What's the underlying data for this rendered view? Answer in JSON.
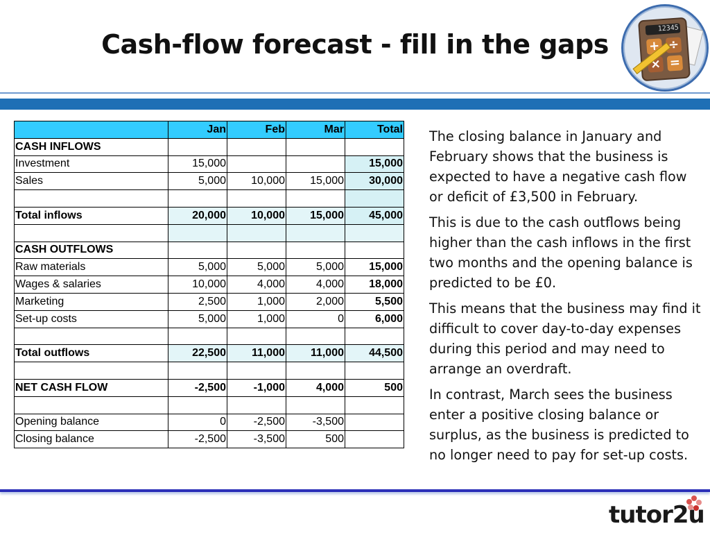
{
  "title": "Cash-flow forecast - fill in the gaps",
  "badge": {
    "screen": "12345",
    "keys": [
      "+",
      "÷",
      "×",
      "="
    ],
    "icon": "calculator-icon"
  },
  "table": {
    "headers": [
      "",
      "Jan",
      "Feb",
      "Mar",
      "Total"
    ],
    "rows": [
      [
        "CASH INFLOWS",
        "",
        "",
        "",
        ""
      ],
      [
        "Investment",
        "15,000",
        "",
        "",
        "15,000"
      ],
      [
        "Sales",
        "5,000",
        "10,000",
        "15,000",
        "30,000"
      ],
      [
        "",
        "",
        "",
        "",
        ""
      ],
      [
        "Total inflows",
        "20,000",
        "10,000",
        "15,000",
        "45,000"
      ],
      [
        "",
        "",
        "",
        "",
        ""
      ],
      [
        "CASH OUTFLOWS",
        "",
        "",
        "",
        ""
      ],
      [
        "Raw materials",
        "5,000",
        "5,000",
        "5,000",
        "15,000"
      ],
      [
        "Wages & salaries",
        "10,000",
        "4,000",
        "4,000",
        "18,000"
      ],
      [
        "Marketing",
        "2,500",
        "1,000",
        "2,000",
        "5,500"
      ],
      [
        "Set-up costs",
        "5,000",
        "1,000",
        "0",
        "6,000"
      ],
      [
        "",
        "",
        "",
        "",
        ""
      ],
      [
        "Total outflows",
        "22,500",
        "11,000",
        "11,000",
        "44,500"
      ],
      [
        "",
        "",
        "",
        "",
        ""
      ],
      [
        "NET CASH FLOW",
        "-2,500",
        "-1,000",
        "4,000",
        "500"
      ],
      [
        "",
        "",
        "",
        "",
        ""
      ],
      [
        "Opening balance",
        "0",
        "-2,500",
        "-3,500",
        ""
      ],
      [
        "Closing balance",
        "-2,500",
        "-3,500",
        "500",
        ""
      ]
    ]
  },
  "explanation": [
    "The closing balance in January and February shows that the business is expected to have a negative cash flow or deficit of £3,500 in February.",
    "This is due to the cash outflows being higher than the cash inflows in the first two months and the opening balance is predicted to be £0.",
    "This means that the business may find it difficult to cover day-to-day expenses during this period and may need to arrange an overdraft.",
    "In contrast, March sees the business enter a positive closing balance or surplus, as the business is predicted to no longer need to pay for set-up costs."
  ],
  "logo": {
    "text": "tutor2u",
    "icon": "flower-logo-icon"
  },
  "colors": {
    "header_row": "#33ccff",
    "band": "#1f6fb5",
    "total_highlight": "#e3f5f8"
  }
}
